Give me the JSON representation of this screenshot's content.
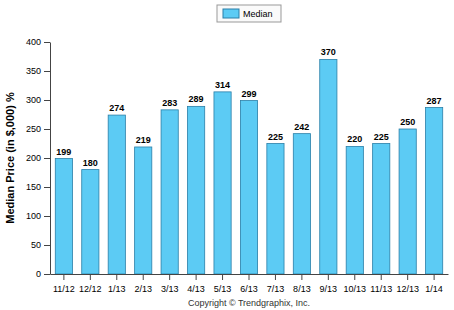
{
  "chart_data": {
    "type": "bar",
    "y_label": "Median Price (in $,000) %",
    "categories": [
      "11/12",
      "12/12",
      "1/13",
      "2/13",
      "3/13",
      "4/13",
      "5/13",
      "6/13",
      "7/13",
      "8/13",
      "9/13",
      "10/13",
      "11/13",
      "12/13",
      "1/14"
    ],
    "series": [
      {
        "name": "Median",
        "color": "#5ccbf4",
        "values": [
          199,
          180,
          274,
          219,
          283,
          289,
          314,
          299,
          225,
          242,
          370,
          220,
          225,
          250,
          287
        ]
      }
    ],
    "ylim": [
      0,
      400
    ],
    "yticks": [
      0,
      50,
      100,
      150,
      200,
      250,
      300,
      350,
      400
    ],
    "grid": false,
    "legend": "top",
    "data_labels": true,
    "annotations": [
      "Copyright © Trendgraphix, Inc."
    ]
  }
}
